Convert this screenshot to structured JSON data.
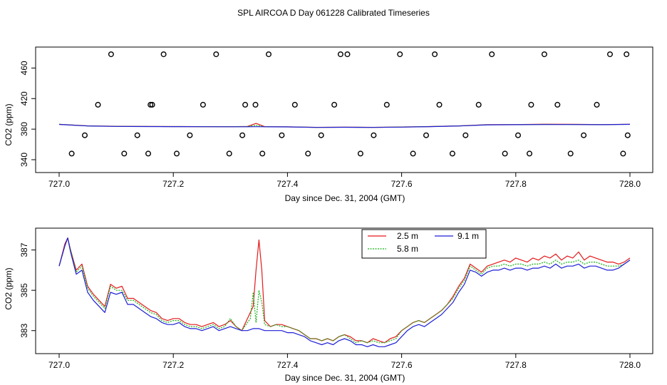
{
  "title": "SPL AIRCOA D  Day 061228  Calibrated Timeseries",
  "colors": {
    "red": "#e31a1c",
    "green": "#18b018",
    "blue": "#1f1fd6"
  },
  "chart_data": [
    {
      "type": "scatter",
      "xlabel": "Day since Dec. 31, 2004 (GMT)",
      "ylabel": "CO2 (ppm)",
      "xlim": [
        727.0,
        728.0
      ],
      "ylim": [
        340,
        480
      ],
      "xticks": [
        "727.0",
        "727.2",
        "727.4",
        "727.6",
        "727.8",
        "728.0"
      ],
      "yticks": [
        "340",
        "380",
        "420",
        "460"
      ],
      "ytick_values": [
        340,
        380,
        420,
        460
      ],
      "series": [
        {
          "name": "2.5 m",
          "color": "#e31a1c",
          "x": [
            727.0,
            727.05,
            727.1,
            727.15,
            727.2,
            727.25,
            727.3,
            727.33,
            727.345,
            727.36,
            727.4,
            727.45,
            727.5,
            727.55,
            727.6,
            727.65,
            727.7,
            727.75,
            727.8,
            727.85,
            727.9,
            727.95,
            728.0
          ],
          "y": [
            386.3,
            384.3,
            383.8,
            383.6,
            383.4,
            383.3,
            383.2,
            383.6,
            387.5,
            383.3,
            383.0,
            382.4,
            382.6,
            382.4,
            382.8,
            383.4,
            384.2,
            385.8,
            386.0,
            386.5,
            386.3,
            386.0,
            386.4
          ]
        },
        {
          "name": "5.8 m",
          "color": "#18b018",
          "x": [
            727.0,
            727.05,
            727.1,
            727.15,
            727.2,
            727.25,
            727.3,
            727.33,
            727.345,
            727.36,
            727.4,
            727.45,
            727.5,
            727.55,
            727.6,
            727.65,
            727.7,
            727.75,
            727.8,
            727.85,
            727.9,
            727.95,
            728.0
          ],
          "y": [
            386.3,
            384.2,
            383.7,
            383.5,
            383.4,
            383.3,
            383.2,
            383.4,
            385.0,
            383.2,
            383.0,
            382.4,
            382.6,
            382.4,
            382.8,
            383.4,
            384.2,
            385.7,
            385.9,
            386.2,
            386.1,
            385.9,
            386.3
          ]
        },
        {
          "name": "9.1 m",
          "color": "#1f1fd6",
          "x": [
            727.0,
            727.05,
            727.1,
            727.15,
            727.2,
            727.25,
            727.3,
            727.33,
            727.345,
            727.36,
            727.4,
            727.45,
            727.5,
            727.55,
            727.6,
            727.65,
            727.7,
            727.75,
            727.8,
            727.85,
            727.9,
            727.95,
            728.0
          ],
          "y": [
            386.2,
            384.1,
            383.6,
            383.4,
            383.3,
            383.2,
            383.1,
            383.1,
            383.2,
            383.1,
            382.9,
            382.3,
            382.5,
            382.3,
            382.7,
            383.3,
            384.1,
            385.6,
            385.8,
            386.0,
            386.0,
            385.8,
            386.3
          ]
        }
      ],
      "points": {
        "x": [
          727.022,
          727.045,
          727.068,
          727.091,
          727.114,
          727.137,
          727.16,
          727.183,
          727.206,
          727.229,
          727.252,
          727.275,
          727.298,
          727.321,
          727.344,
          727.367,
          727.39,
          727.413,
          727.436,
          727.459,
          727.482,
          727.505,
          727.528,
          727.551,
          727.574,
          727.597,
          727.62,
          727.643,
          727.666,
          727.689,
          727.712,
          727.735,
          727.758,
          727.781,
          727.804,
          727.827,
          727.85,
          727.873,
          727.896,
          727.919,
          727.942,
          727.965,
          727.988,
          727.994,
          727.156,
          727.326,
          727.163,
          727.356,
          727.493,
          727.824,
          727.658,
          727.996
        ],
        "y": [
          348,
          372,
          412,
          478,
          348,
          372,
          412,
          478,
          348,
          372,
          412,
          478,
          348,
          372,
          412,
          478,
          372,
          412,
          348,
          372,
          412,
          478,
          348,
          372,
          412,
          478,
          348,
          372,
          412,
          348,
          372,
          412,
          478,
          348,
          372,
          412,
          478,
          412,
          348,
          372,
          412,
          478,
          348,
          478,
          348,
          412,
          412,
          348,
          478,
          348,
          478,
          372
        ]
      }
    },
    {
      "type": "line",
      "xlabel": "Day since Dec. 31, 2004 (GMT)",
      "ylabel": "CO2 (ppm)",
      "xlim": [
        727.0,
        728.0
      ],
      "ylim": [
        382.0,
        387.8
      ],
      "xticks": [
        "727.0",
        "727.2",
        "727.4",
        "727.6",
        "727.8",
        "728.0"
      ],
      "yticks": [
        "383",
        "385",
        "387"
      ],
      "ytick_values": [
        383,
        385,
        387
      ],
      "legend_position": "top-center",
      "series": [
        {
          "name": "2.5 m",
          "color": "#e31a1c",
          "x": [
            727.0,
            727.01,
            727.015,
            727.02,
            727.03,
            727.04,
            727.05,
            727.06,
            727.07,
            727.08,
            727.09,
            727.1,
            727.11,
            727.12,
            727.13,
            727.14,
            727.15,
            727.16,
            727.17,
            727.18,
            727.19,
            727.2,
            727.21,
            727.22,
            727.23,
            727.24,
            727.25,
            727.26,
            727.27,
            727.28,
            727.29,
            727.3,
            727.31,
            727.32,
            727.33,
            727.34,
            727.345,
            727.35,
            727.355,
            727.36,
            727.37,
            727.38,
            727.39,
            727.4,
            727.41,
            727.42,
            727.43,
            727.44,
            727.45,
            727.46,
            727.47,
            727.48,
            727.49,
            727.5,
            727.51,
            727.52,
            727.53,
            727.54,
            727.55,
            727.56,
            727.57,
            727.58,
            727.59,
            727.6,
            727.61,
            727.62,
            727.63,
            727.64,
            727.65,
            727.66,
            727.67,
            727.68,
            727.69,
            727.7,
            727.71,
            727.72,
            727.73,
            727.74,
            727.75,
            727.76,
            727.77,
            727.78,
            727.79,
            727.8,
            727.81,
            727.82,
            727.83,
            727.84,
            727.85,
            727.86,
            727.87,
            727.88,
            727.89,
            727.9,
            727.91,
            727.92,
            727.93,
            727.94,
            727.95,
            727.96,
            727.97,
            727.98,
            727.99,
            728.0
          ],
          "y": [
            386.2,
            387.3,
            387.6,
            387.0,
            386.0,
            386.3,
            385.2,
            384.8,
            384.5,
            384.2,
            385.3,
            385.1,
            385.2,
            384.6,
            384.6,
            384.4,
            384.2,
            384.0,
            383.9,
            383.6,
            383.5,
            383.6,
            383.6,
            383.4,
            383.3,
            383.3,
            383.2,
            383.3,
            383.4,
            383.2,
            383.3,
            383.5,
            383.2,
            383.0,
            383.6,
            384.2,
            386.0,
            387.5,
            386.0,
            383.5,
            383.2,
            383.3,
            383.3,
            383.2,
            383.1,
            383.0,
            382.8,
            382.6,
            382.6,
            382.5,
            382.6,
            382.5,
            382.7,
            382.8,
            382.7,
            382.5,
            382.5,
            382.4,
            382.6,
            382.5,
            382.4,
            382.6,
            382.7,
            383.0,
            383.2,
            383.4,
            383.5,
            383.4,
            383.6,
            383.8,
            384.0,
            384.3,
            384.7,
            385.2,
            385.6,
            386.3,
            386.1,
            385.9,
            386.2,
            386.3,
            386.4,
            386.5,
            386.4,
            386.6,
            386.5,
            386.4,
            386.6,
            386.5,
            386.7,
            386.6,
            386.8,
            386.5,
            386.7,
            386.6,
            386.9,
            386.5,
            386.7,
            386.6,
            386.5,
            386.4,
            386.4,
            386.3,
            386.4,
            386.6
          ]
        },
        {
          "name": "5.8 m",
          "color": "#18b018",
          "x": [
            727.0,
            727.01,
            727.015,
            727.02,
            727.03,
            727.04,
            727.05,
            727.06,
            727.07,
            727.08,
            727.09,
            727.1,
            727.11,
            727.12,
            727.13,
            727.14,
            727.15,
            727.16,
            727.17,
            727.18,
            727.19,
            727.2,
            727.21,
            727.22,
            727.23,
            727.24,
            727.25,
            727.26,
            727.27,
            727.28,
            727.29,
            727.3,
            727.31,
            727.32,
            727.33,
            727.335,
            727.34,
            727.345,
            727.35,
            727.355,
            727.36,
            727.37,
            727.38,
            727.39,
            727.4,
            727.41,
            727.42,
            727.43,
            727.44,
            727.45,
            727.46,
            727.47,
            727.48,
            727.49,
            727.5,
            727.51,
            727.52,
            727.53,
            727.54,
            727.55,
            727.56,
            727.57,
            727.58,
            727.59,
            727.6,
            727.61,
            727.62,
            727.63,
            727.64,
            727.65,
            727.66,
            727.67,
            727.68,
            727.69,
            727.7,
            727.71,
            727.72,
            727.73,
            727.74,
            727.75,
            727.76,
            727.77,
            727.78,
            727.79,
            727.8,
            727.81,
            727.82,
            727.83,
            727.84,
            727.85,
            727.86,
            727.87,
            727.88,
            727.89,
            727.9,
            727.91,
            727.92,
            727.93,
            727.94,
            727.95,
            727.96,
            727.97,
            727.98,
            727.99,
            728.0
          ],
          "y": [
            386.2,
            387.2,
            387.6,
            387.0,
            385.9,
            386.2,
            385.1,
            384.7,
            384.4,
            384.1,
            385.2,
            385.0,
            385.0,
            384.5,
            384.5,
            384.3,
            384.1,
            383.9,
            383.8,
            383.5,
            383.4,
            383.5,
            383.5,
            383.3,
            383.2,
            383.2,
            383.1,
            383.2,
            383.3,
            383.1,
            383.2,
            383.6,
            383.2,
            383.0,
            383.4,
            383.6,
            384.9,
            383.4,
            385.0,
            384.4,
            383.3,
            383.2,
            383.3,
            383.2,
            383.2,
            383.1,
            383.0,
            382.8,
            382.6,
            382.6,
            382.5,
            382.6,
            382.5,
            382.7,
            382.8,
            382.6,
            382.4,
            382.5,
            382.4,
            382.5,
            382.4,
            382.4,
            382.5,
            382.6,
            383.0,
            383.2,
            383.4,
            383.5,
            383.4,
            383.6,
            383.8,
            384.0,
            384.3,
            384.6,
            385.1,
            385.5,
            386.2,
            386.0,
            385.8,
            386.1,
            386.2,
            386.2,
            386.3,
            386.2,
            386.3,
            386.3,
            386.2,
            386.3,
            386.3,
            386.4,
            386.3,
            386.5,
            386.3,
            386.4,
            386.4,
            386.5,
            386.3,
            386.4,
            386.4,
            386.3,
            386.2,
            386.2,
            386.2,
            386.3,
            386.5
          ]
        },
        {
          "name": "9.1 m",
          "color": "#1f1fd6",
          "x": [
            727.0,
            727.01,
            727.015,
            727.02,
            727.03,
            727.04,
            727.05,
            727.06,
            727.07,
            727.08,
            727.09,
            727.1,
            727.11,
            727.12,
            727.13,
            727.14,
            727.15,
            727.16,
            727.17,
            727.18,
            727.19,
            727.2,
            727.21,
            727.22,
            727.23,
            727.24,
            727.25,
            727.26,
            727.27,
            727.28,
            727.29,
            727.3,
            727.31,
            727.32,
            727.33,
            727.34,
            727.35,
            727.36,
            727.37,
            727.38,
            727.39,
            727.4,
            727.41,
            727.42,
            727.43,
            727.44,
            727.45,
            727.46,
            727.47,
            727.48,
            727.49,
            727.5,
            727.51,
            727.52,
            727.53,
            727.54,
            727.55,
            727.56,
            727.57,
            727.58,
            727.59,
            727.6,
            727.61,
            727.62,
            727.63,
            727.64,
            727.65,
            727.66,
            727.67,
            727.68,
            727.69,
            727.7,
            727.71,
            727.72,
            727.73,
            727.74,
            727.75,
            727.76,
            727.77,
            727.78,
            727.79,
            727.8,
            727.81,
            727.82,
            727.83,
            727.84,
            727.85,
            727.86,
            727.87,
            727.88,
            727.89,
            727.9,
            727.91,
            727.92,
            727.93,
            727.94,
            727.95,
            727.96,
            727.97,
            727.98,
            727.99,
            728.0
          ],
          "y": [
            386.2,
            387.2,
            387.6,
            386.9,
            385.8,
            386.0,
            384.9,
            384.5,
            384.2,
            383.9,
            384.9,
            384.8,
            384.9,
            384.3,
            384.3,
            384.1,
            383.9,
            383.7,
            383.6,
            383.4,
            383.3,
            383.3,
            383.4,
            383.2,
            383.1,
            383.1,
            383.0,
            383.1,
            383.2,
            383.0,
            383.1,
            383.2,
            383.1,
            383.0,
            383.0,
            383.1,
            383.1,
            383.0,
            383.0,
            383.0,
            383.0,
            382.9,
            382.9,
            382.8,
            382.7,
            382.5,
            382.4,
            382.3,
            382.4,
            382.3,
            382.5,
            382.6,
            382.5,
            382.3,
            382.3,
            382.2,
            382.3,
            382.2,
            382.2,
            382.3,
            382.4,
            382.7,
            383.0,
            383.2,
            383.3,
            383.2,
            383.4,
            383.6,
            383.8,
            384.1,
            384.4,
            384.9,
            385.3,
            386.0,
            385.9,
            385.7,
            385.9,
            386.0,
            386.0,
            386.1,
            386.0,
            386.1,
            386.1,
            386.0,
            386.1,
            386.1,
            386.2,
            386.1,
            386.3,
            386.1,
            386.2,
            386.2,
            386.3,
            386.1,
            386.2,
            386.2,
            386.1,
            386.0,
            386.0,
            386.1,
            386.3,
            386.5
          ]
        }
      ]
    }
  ]
}
